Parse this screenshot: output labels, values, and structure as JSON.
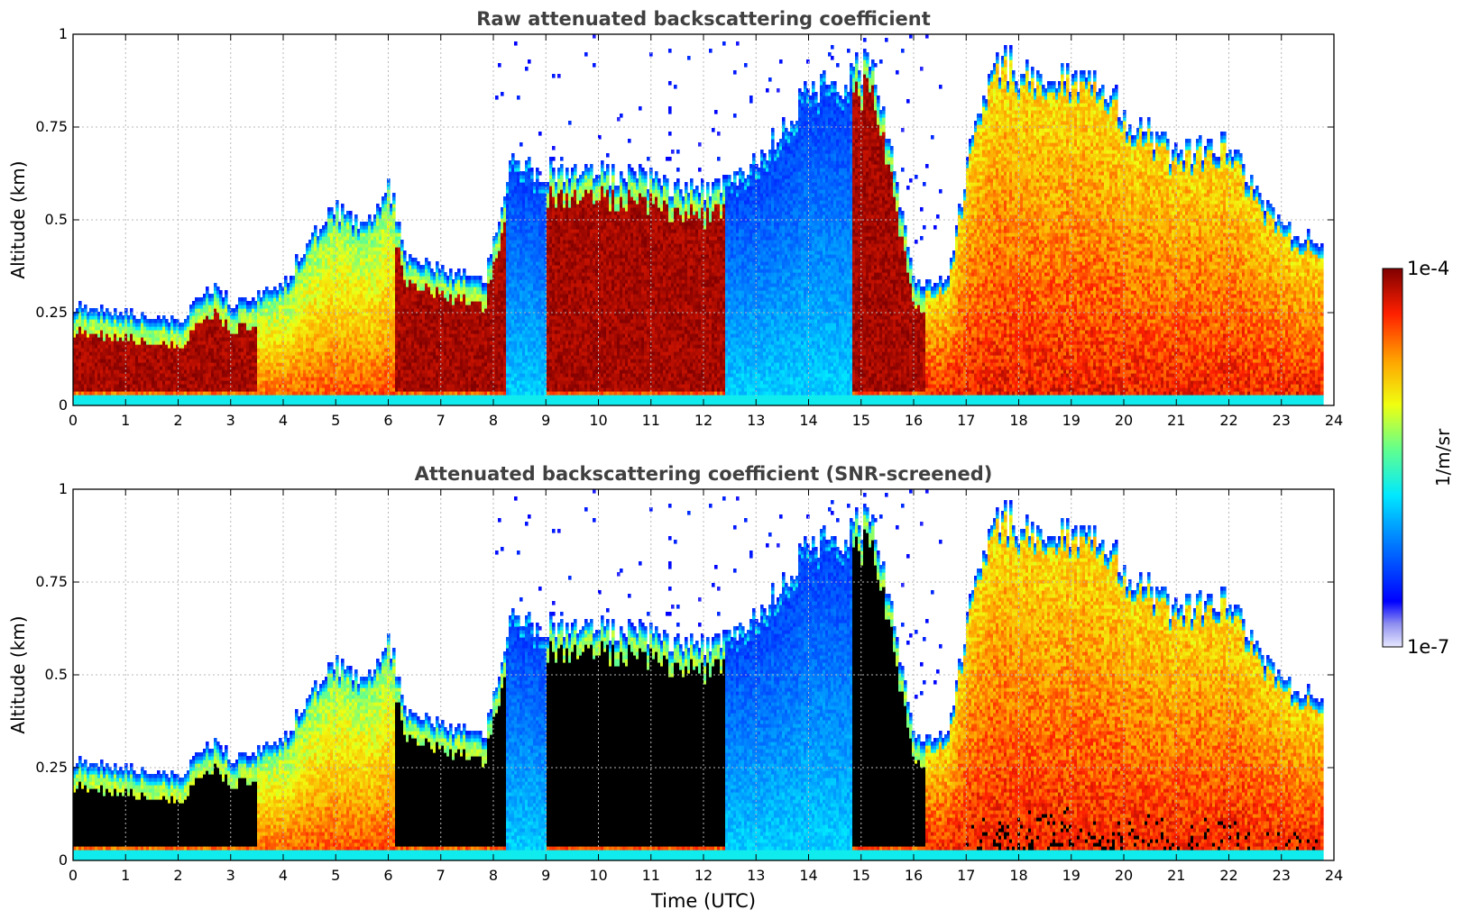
{
  "figure": {
    "colorbar": {
      "label": "1/m/sr",
      "max_label": "1e-4",
      "min_label": "1e-7",
      "scale": "log",
      "range": [
        1e-07,
        0.0001
      ],
      "colormap": "jet"
    }
  },
  "chart_data": [
    {
      "type": "heatmap",
      "title": "Raw attenuated backscattering coefficient",
      "xlabel": "",
      "ylabel": "Altitude (km)",
      "xlim": [
        0,
        24
      ],
      "ylim": [
        0,
        1
      ],
      "x_ticks": [
        "0",
        "1",
        "2",
        "3",
        "4",
        "5",
        "6",
        "7",
        "8",
        "9",
        "10",
        "11",
        "12",
        "13",
        "14",
        "15",
        "16",
        "17",
        "18",
        "19",
        "20",
        "21",
        "22",
        "23",
        "24"
      ],
      "y_ticks": [
        "0",
        "0.25",
        "0.5",
        "0.75",
        "1"
      ],
      "grid": true,
      "data_end_hour": 23.8,
      "aerosol_layer_top_km": [
        [
          0,
          0.24
        ],
        [
          1,
          0.22
        ],
        [
          2,
          0.2
        ],
        [
          2.7,
          0.3
        ],
        [
          3,
          0.24
        ],
        [
          4,
          0.3
        ],
        [
          4.6,
          0.45
        ],
        [
          5,
          0.5
        ],
        [
          5.5,
          0.45
        ],
        [
          6,
          0.56
        ],
        [
          6.3,
          0.38
        ],
        [
          7,
          0.34
        ],
        [
          7.8,
          0.3
        ],
        [
          8.3,
          0.62
        ],
        [
          9,
          0.6
        ],
        [
          10,
          0.6
        ],
        [
          11,
          0.58
        ],
        [
          12,
          0.55
        ],
        [
          13,
          0.62
        ],
        [
          14,
          0.84
        ],
        [
          14.5,
          0.82
        ],
        [
          15.2,
          0.92
        ],
        [
          15.6,
          0.6
        ],
        [
          16,
          0.3
        ],
        [
          16.6,
          0.3
        ],
        [
          17,
          0.62
        ],
        [
          17.5,
          0.9
        ],
        [
          18.5,
          0.85
        ],
        [
          19.5,
          0.85
        ],
        [
          20,
          0.75
        ],
        [
          21,
          0.65
        ],
        [
          22,
          0.68
        ],
        [
          22.5,
          0.55
        ],
        [
          23,
          0.45
        ],
        [
          23.8,
          0.4
        ]
      ]
    },
    {
      "type": "heatmap",
      "title": "Attenuated backscattering coefficient (SNR-screened)",
      "xlabel": "Time (UTC)",
      "ylabel": "Altitude (km)",
      "xlim": [
        0,
        24
      ],
      "ylim": [
        0,
        1
      ],
      "x_ticks": [
        "0",
        "1",
        "2",
        "3",
        "4",
        "5",
        "6",
        "7",
        "8",
        "9",
        "10",
        "11",
        "12",
        "13",
        "14",
        "15",
        "16",
        "17",
        "18",
        "19",
        "20",
        "21",
        "22",
        "23",
        "24"
      ],
      "y_ticks": [
        "0",
        "0.25",
        "0.5",
        "0.75",
        "1"
      ],
      "grid": true,
      "data_end_hour": 23.8,
      "saturated_color": "#000000"
    }
  ]
}
